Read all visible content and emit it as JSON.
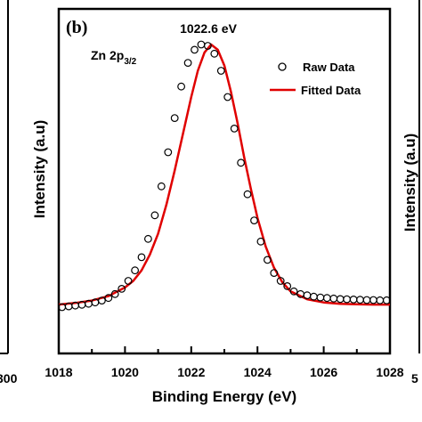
{
  "chart_data": {
    "type": "line",
    "panel_label": "(b)",
    "species_label": "Zn 2p",
    "species_subscript": "3/2",
    "peak_annotation": "1022.6 eV",
    "peak_position": 1022.6,
    "xlabel": "Binding Energy (eV)",
    "ylabel": "Intensity (a.u)",
    "xlim": [
      1018,
      1028
    ],
    "ylim": [
      0,
      1
    ],
    "x_ticks": [
      1018,
      1020,
      1022,
      1024,
      1026,
      1028
    ],
    "x_tick_labels": [
      "1018",
      "1020",
      "1022",
      "1024",
      "1026",
      "1028"
    ],
    "left_panel_edge_label": "300",
    "right_panel_edge_label": "5",
    "right_panel_axis_label": "Intensity (a.u)",
    "grid": false,
    "legend_position": "top-right",
    "series": [
      {
        "name": "Raw Data",
        "style": "open-circle",
        "color": "#000000",
        "x": [
          1018.1,
          1018.3,
          1018.5,
          1018.7,
          1018.9,
          1019.1,
          1019.3,
          1019.5,
          1019.7,
          1019.9,
          1020.1,
          1020.3,
          1020.5,
          1020.7,
          1020.9,
          1021.1,
          1021.3,
          1021.5,
          1021.7,
          1021.9,
          1022.1,
          1022.3,
          1022.5,
          1022.7,
          1022.9,
          1023.1,
          1023.3,
          1023.5,
          1023.7,
          1023.9,
          1024.1,
          1024.3,
          1024.5,
          1024.7,
          1024.9,
          1025.1,
          1025.3,
          1025.5,
          1025.7,
          1025.9,
          1026.1,
          1026.3,
          1026.5,
          1026.7,
          1026.9,
          1027.1,
          1027.3,
          1027.5,
          1027.7,
          1027.9
        ],
        "y": [
          0.0,
          0.003,
          0.006,
          0.009,
          0.013,
          0.018,
          0.025,
          0.035,
          0.05,
          0.07,
          0.1,
          0.14,
          0.19,
          0.26,
          0.35,
          0.46,
          0.59,
          0.72,
          0.84,
          0.93,
          0.98,
          1.0,
          0.995,
          0.965,
          0.9,
          0.8,
          0.68,
          0.55,
          0.43,
          0.33,
          0.25,
          0.18,
          0.13,
          0.1,
          0.08,
          0.06,
          0.05,
          0.045,
          0.04,
          0.037,
          0.035,
          0.033,
          0.031,
          0.03,
          0.029,
          0.028,
          0.027,
          0.027,
          0.026,
          0.026
        ]
      },
      {
        "name": "Fitted Data",
        "style": "line",
        "color": "#e00000",
        "x": [
          1018,
          1018.5,
          1019,
          1019.5,
          1020,
          1020.25,
          1020.5,
          1020.75,
          1021,
          1021.25,
          1021.5,
          1021.75,
          1022,
          1022.2,
          1022.4,
          1022.6,
          1022.8,
          1023,
          1023.2,
          1023.4,
          1023.6,
          1023.8,
          1024,
          1024.25,
          1024.5,
          1024.75,
          1025,
          1025.5,
          1026,
          1026.5,
          1027,
          1027.5,
          1028
        ],
        "y": [
          0.01,
          0.016,
          0.025,
          0.042,
          0.075,
          0.1,
          0.14,
          0.2,
          0.28,
          0.39,
          0.52,
          0.66,
          0.8,
          0.9,
          0.97,
          1.0,
          0.98,
          0.92,
          0.82,
          0.7,
          0.57,
          0.45,
          0.34,
          0.23,
          0.15,
          0.095,
          0.06,
          0.03,
          0.018,
          0.013,
          0.011,
          0.01,
          0.01
        ]
      }
    ]
  }
}
